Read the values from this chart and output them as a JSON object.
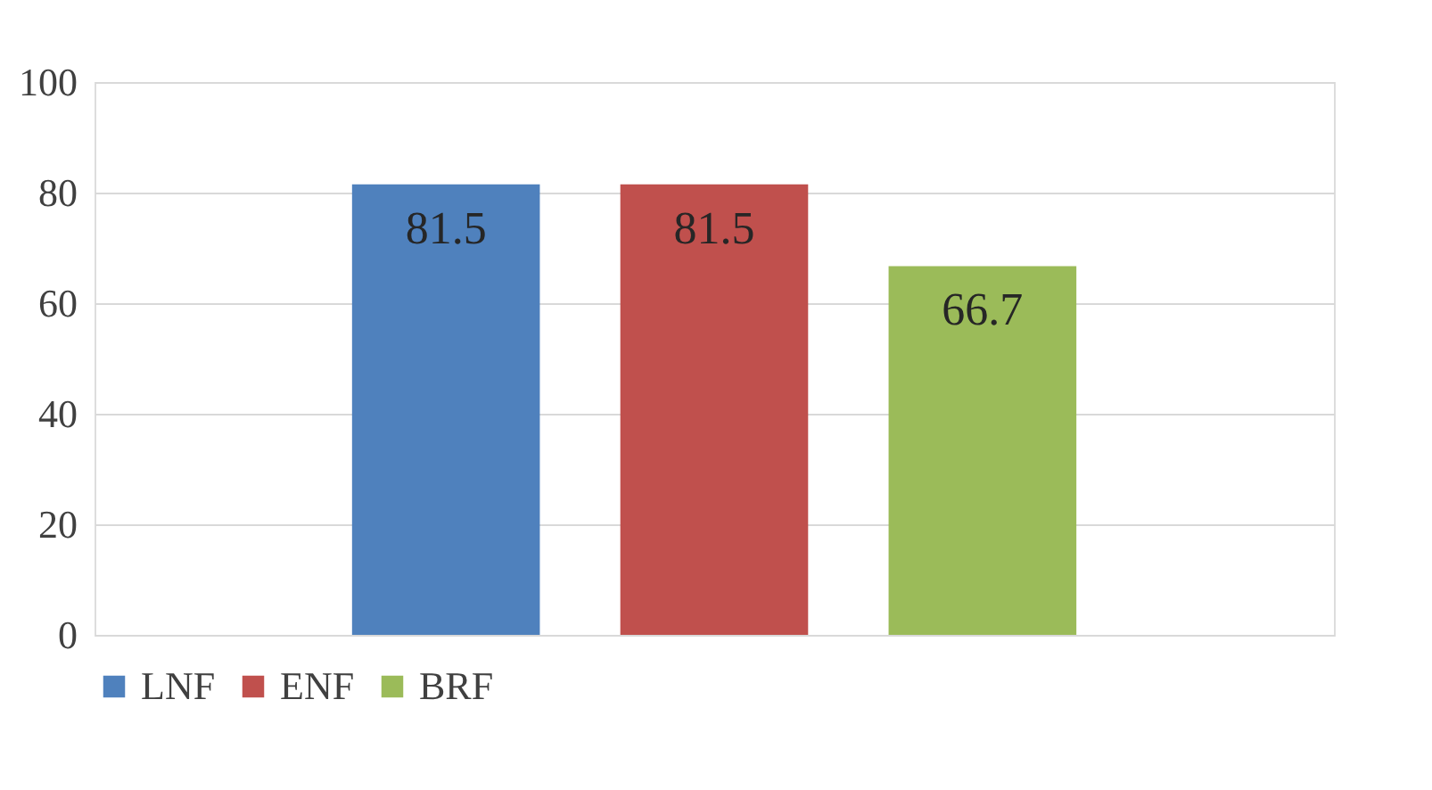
{
  "chart_data": {
    "type": "bar",
    "categories": [
      null
    ],
    "series": [
      {
        "name": "LNF",
        "color": "#4f81bd",
        "values": [
          81.5
        ]
      },
      {
        "name": "ENF",
        "color": "#c0504d",
        "values": [
          81.5
        ]
      },
      {
        "name": "BRF",
        "color": "#9bbb59",
        "values": [
          66.7
        ]
      }
    ],
    "ylim": [
      0,
      100
    ],
    "yticks": [
      0,
      20,
      40,
      60,
      80,
      100
    ],
    "grid": "y",
    "legend": "bottom",
    "data_labels": true,
    "tick_labels": "y"
  }
}
